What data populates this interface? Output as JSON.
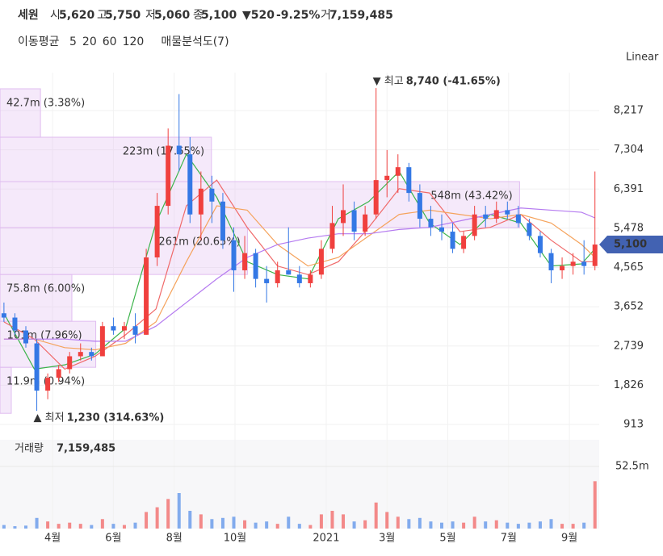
{
  "header": {
    "name": "세원",
    "open_label": "시",
    "open": "5,620",
    "high_label": "고",
    "high": "5,750",
    "low_label": "저",
    "low": "5,060",
    "close_label": "종",
    "close": "5,100",
    "change": "▼520",
    "change_pct": "-9.25%",
    "volume_label": "거",
    "volume": "7,159,485"
  },
  "chart_data": {
    "type": "candlestick",
    "scale": "Linear",
    "up_color": "#f0403e",
    "down_color": "#3478e5",
    "x": [
      1.4,
      1.76,
      2.12,
      2.48,
      2.84,
      3.2,
      3.56,
      3.92,
      4.28,
      4.64,
      5.0,
      5.36,
      5.72,
      6.08,
      6.44,
      6.8,
      7.16,
      7.52,
      7.88,
      8.24,
      8.6,
      8.96,
      9.32,
      9.68,
      10.04,
      10.4,
      10.76,
      11.12,
      11.48,
      11.84,
      12.2,
      12.56,
      12.92,
      13.28,
      13.64,
      14.0,
      14.36,
      14.72,
      15.08,
      15.44,
      15.8,
      16.16,
      16.52,
      16.88,
      17.24,
      17.6,
      17.96,
      18.32,
      18.68,
      19.04,
      19.4,
      19.76,
      20.12,
      20.48,
      20.84
    ],
    "open": [
      3500,
      3400,
      3100,
      2800,
      1700,
      2000,
      2200,
      2500,
      2600,
      2500,
      3200,
      3100,
      3200,
      3000,
      4800,
      6000,
      7400,
      7200,
      5800,
      6400,
      6100,
      5200,
      4500,
      4900,
      4300,
      4200,
      4500,
      4400,
      4200,
      4400,
      5000,
      5600,
      5900,
      5400,
      5800,
      6600,
      6700,
      6900,
      6300,
      5700,
      5500,
      5400,
      5000,
      5300,
      5800,
      5700,
      5900,
      5800,
      5600,
      5300,
      4900,
      4500,
      4600,
      4700,
      4600
    ],
    "high": [
      3750,
      3500,
      3200,
      2900,
      2100,
      2300,
      2600,
      2800,
      2700,
      3300,
      3400,
      3300,
      3500,
      5000,
      6300,
      7800,
      8600,
      7600,
      6800,
      6700,
      6300,
      5500,
      5300,
      5000,
      4600,
      4700,
      5500,
      4600,
      4500,
      5200,
      6000,
      6500,
      6100,
      6000,
      8740,
      7300,
      7200,
      7000,
      6500,
      6000,
      5800,
      5600,
      5400,
      6000,
      6000,
      6100,
      6100,
      6000,
      5700,
      5400,
      5000,
      4800,
      4900,
      5200,
      6800
    ],
    "low": [
      3300,
      3000,
      2700,
      1230,
      1500,
      1900,
      2100,
      2400,
      2400,
      2500,
      3000,
      2900,
      2800,
      3000,
      4600,
      5800,
      6800,
      5600,
      5200,
      5600,
      5000,
      4000,
      4300,
      4100,
      3750,
      4100,
      4400,
      4100,
      4100,
      4300,
      4900,
      5300,
      5200,
      5300,
      5700,
      6200,
      6300,
      6100,
      5500,
      5300,
      5200,
      4900,
      4900,
      5200,
      5500,
      5600,
      5700,
      5500,
      5200,
      4800,
      4200,
      4300,
      4400,
      4400,
      4500
    ],
    "close": [
      3400,
      3100,
      2800,
      1700,
      2000,
      2200,
      2500,
      2600,
      2500,
      3200,
      3100,
      3200,
      3000,
      4800,
      6000,
      7400,
      7200,
      5800,
      6400,
      6100,
      5200,
      4500,
      4900,
      4300,
      4200,
      4500,
      4400,
      4200,
      4400,
      5000,
      5600,
      5900,
      5400,
      5800,
      6600,
      6700,
      6900,
      6300,
      5700,
      5500,
      5400,
      5000,
      5300,
      5800,
      5700,
      5900,
      5800,
      5600,
      5300,
      4900,
      4500,
      4600,
      4700,
      4600,
      5100
    ],
    "xlim": [
      1.27,
      20.98
    ],
    "ylim": [
      650,
      9100
    ],
    "xticks": [
      {
        "value": 3,
        "label": "4월"
      },
      {
        "value": 5,
        "label": "6월"
      },
      {
        "value": 7,
        "label": "8월"
      },
      {
        "value": 9,
        "label": "10월"
      },
      {
        "value": 12,
        "label": "2021"
      },
      {
        "value": 14,
        "label": "3월"
      },
      {
        "value": 16,
        "label": "5월"
      },
      {
        "value": 18,
        "label": "7월"
      },
      {
        "value": 20,
        "label": "9월"
      }
    ],
    "yticks": [
      {
        "value": 913,
        "label": "913"
      },
      {
        "value": 1826,
        "label": "1,826"
      },
      {
        "value": 2739,
        "label": "2,739"
      },
      {
        "value": 3652,
        "label": "3,652"
      },
      {
        "value": 4565,
        "label": "4,565"
      },
      {
        "value": 5478,
        "label": "5,478"
      },
      {
        "value": 6391,
        "label": "6,391"
      },
      {
        "value": 7304,
        "label": "7,304"
      },
      {
        "value": 8217,
        "label": "8,217"
      }
    ],
    "price_tag": {
      "value": 5100,
      "label": "5,100"
    },
    "max_annotation": {
      "label": "▼ 최고",
      "x": 13.64,
      "value": 8740,
      "value_label": "8,740 (-41.65%)"
    },
    "min_annotation": {
      "label": "▲ 최저",
      "x": 2.48,
      "value": 1230,
      "value_label": "1,230 (314.63%)"
    },
    "moving_averages": {
      "title": "이동평균",
      "series": [
        {
          "name": "5",
          "color": "#3cb44b",
          "x": [
            1.4,
            2.4,
            3.4,
            4.4,
            5.4,
            6.4,
            7.4,
            8.4,
            9.4,
            10.4,
            11.4,
            12.4,
            13.4,
            14.4,
            15.4,
            16.4,
            17.4,
            18.4,
            19.4,
            20.4,
            20.84
          ],
          "values": [
            3500,
            2200,
            2300,
            2550,
            3150,
            5600,
            7200,
            6200,
            4700,
            4400,
            4300,
            5700,
            6100,
            6800,
            5600,
            5100,
            5800,
            5600,
            4600,
            4650,
            5000
          ]
        },
        {
          "name": "20",
          "color": "#f06a6a",
          "x": [
            1.4,
            2.4,
            3.4,
            4.4,
            5.4,
            6.4,
            7.4,
            8.4,
            9.4,
            10.4,
            11.4,
            12.4,
            13.4,
            14.4,
            15.4,
            16.4,
            17.4,
            18.4,
            19.4,
            20.4,
            20.84
          ],
          "values": [
            3300,
            2900,
            2200,
            2500,
            3000,
            3600,
            6000,
            6600,
            5500,
            4600,
            4400,
            4700,
            5500,
            6400,
            6300,
            5400,
            5500,
            5800,
            5200,
            4700,
            4700
          ]
        },
        {
          "name": "60",
          "color": "#f5a35c",
          "x": [
            1.4,
            2.4,
            3.4,
            4.4,
            5.4,
            6.4,
            7.4,
            8.4,
            9.4,
            10.4,
            11.4,
            12.4,
            13.4,
            14.4,
            15.4,
            16.4,
            17.4,
            18.4,
            19.4,
            20.4,
            20.84
          ],
          "values": [
            2900,
            2900,
            2700,
            2650,
            2800,
            3300,
            4700,
            6000,
            5900,
            5100,
            4600,
            4800,
            5300,
            5800,
            5900,
            5800,
            5700,
            5800,
            5600,
            5100,
            4800
          ]
        },
        {
          "name": "120",
          "color": "#b57bf0",
          "x": [
            1.4,
            2.4,
            3.4,
            4.4,
            5.4,
            6.4,
            7.4,
            8.4,
            9.4,
            10.4,
            11.4,
            12.4,
            13.4,
            14.4,
            15.4,
            16.4,
            17.4,
            18.4,
            19.4,
            20.4,
            20.84
          ],
          "values": [
            2900,
            2900,
            2900,
            2850,
            2850,
            3200,
            3750,
            4300,
            4800,
            5100,
            5250,
            5350,
            5350,
            5450,
            5500,
            5650,
            5800,
            5950,
            5900,
            5850,
            5720
          ]
        }
      ]
    },
    "volume_profile": {
      "name": "매물분석도(7)",
      "color": "#e7c8f3",
      "bins": [
        1172,
        2243,
        3314,
        4403,
        5493,
        6564,
        7597,
        8724
      ],
      "values": [
        11900000,
        101000000,
        75800000,
        261000000,
        548000000,
        223000000,
        42700000
      ],
      "value_labels": [
        "11.9m (0.94%)",
        "101m (7.96%)",
        "75.8m (6.00%)",
        "261m (20.65%)",
        "548m (43.42%)",
        "223m (17.65%)",
        "42.7m (3.38%)"
      ],
      "xlim": [
        0,
        632000000
      ]
    },
    "volume": {
      "title": "거래량",
      "latest": {
        "value": 7159485,
        "label": "7,159,485"
      },
      "values": [
        3000000,
        2000000,
        2500000,
        9000000,
        6000000,
        4000000,
        5000000,
        4000000,
        3000000,
        8000000,
        4000000,
        3000000,
        5000000,
        14000000,
        18000000,
        25000000,
        30000000,
        15000000,
        12000000,
        8000000,
        9000000,
        10000000,
        7000000,
        5000000,
        6000000,
        4000000,
        10000000,
        4000000,
        3000000,
        12000000,
        15000000,
        12000000,
        6000000,
        7000000,
        22000000,
        14000000,
        10000000,
        8000000,
        9000000,
        6000000,
        5000000,
        6000000,
        5000000,
        10000000,
        6000000,
        7000000,
        5000000,
        4000000,
        5000000,
        6000000,
        8000000,
        4000000,
        4000000,
        5000000,
        40000000
      ],
      "ylim": [
        0,
        75000000
      ],
      "yticks": [
        {
          "value": 52500000,
          "label": "52.5m"
        }
      ]
    }
  }
}
